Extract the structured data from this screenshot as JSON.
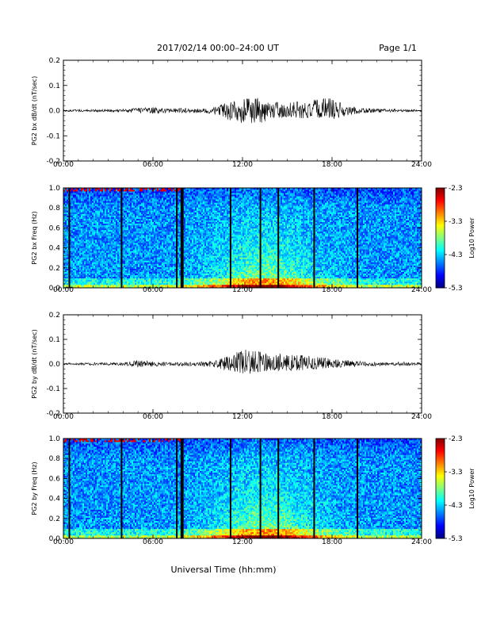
{
  "header": {
    "date_range": "2017/02/14  00:00–24:00 UT",
    "page": "Page 1/1"
  },
  "xlabel": "Universal Time (hh:mm)",
  "chart_data": [
    {
      "type": "line",
      "ylabel": "PG2 bx dB/dt (nT/sec)",
      "xlim": [
        0,
        24
      ],
      "ylim": [
        -0.2,
        0.2
      ],
      "x_ticks": [
        "00:00",
        "06:00",
        "12:00",
        "18:00",
        "24:00"
      ],
      "y_ticks": [
        "0.2",
        "0.1",
        "0.0",
        "-0.1",
        "-0.2"
      ],
      "series": [
        {
          "x": [
            0,
            1,
            2,
            3,
            4,
            5,
            6,
            7,
            8,
            9,
            10,
            11,
            12,
            13,
            14,
            15,
            16,
            17,
            18,
            19,
            20,
            21,
            22,
            23,
            24
          ],
          "ymax": [
            0.004,
            0.004,
            0.005,
            0.005,
            0.006,
            0.01,
            0.014,
            0.008,
            0.01,
            0.008,
            0.012,
            0.03,
            0.045,
            0.05,
            0.035,
            0.03,
            0.038,
            0.045,
            0.055,
            0.02,
            0.01,
            0.008,
            0.006,
            0.005,
            0.004
          ],
          "ymin": [
            -0.004,
            -0.004,
            -0.005,
            -0.005,
            -0.006,
            -0.01,
            -0.012,
            -0.008,
            -0.01,
            -0.008,
            -0.012,
            -0.035,
            -0.05,
            -0.055,
            -0.03,
            -0.025,
            -0.03,
            -0.03,
            -0.035,
            -0.02,
            -0.01,
            -0.008,
            -0.006,
            -0.005,
            -0.004
          ]
        }
      ]
    },
    {
      "type": "heatmap",
      "ylabel": "PG2 bx Freq (Hz)",
      "xlim": [
        0,
        24
      ],
      "ylim": [
        0.0,
        1.0
      ],
      "x_ticks": [
        "00:00",
        "06:00",
        "12:00",
        "18:00",
        "24:00"
      ],
      "y_ticks": [
        "1.0",
        "0.8",
        "0.6",
        "0.4",
        "0.2",
        "0.0"
      ],
      "colorbar": {
        "label": "Log10 Power",
        "range": [
          -5.3,
          -2.3
        ],
        "ticks": [
          "-2.3",
          "-3.3",
          "-4.3",
          "-5.3"
        ]
      },
      "data_gaps_hours": [
        0.4,
        3.9,
        7.6,
        7.9,
        8.0,
        11.2,
        13.2,
        14.4,
        16.8,
        19.7
      ]
    },
    {
      "type": "line",
      "ylabel": "PG2 by dB/dt (nT/sec)",
      "xlim": [
        0,
        24
      ],
      "ylim": [
        -0.2,
        0.2
      ],
      "x_ticks": [
        "00:00",
        "06:00",
        "12:00",
        "18:00",
        "24:00"
      ],
      "y_ticks": [
        "0.2",
        "0.1",
        "0.0",
        "-0.1",
        "-0.2"
      ],
      "series": [
        {
          "x": [
            0,
            1,
            2,
            3,
            4,
            5,
            6,
            7,
            8,
            9,
            10,
            11,
            12,
            13,
            14,
            15,
            16,
            17,
            18,
            19,
            20,
            21,
            22,
            23,
            24
          ],
          "ymax": [
            0.004,
            0.004,
            0.005,
            0.005,
            0.006,
            0.014,
            0.01,
            0.006,
            0.008,
            0.008,
            0.012,
            0.03,
            0.06,
            0.05,
            0.045,
            0.04,
            0.035,
            0.03,
            0.02,
            0.015,
            0.01,
            0.008,
            0.006,
            0.01,
            0.004
          ],
          "ymin": [
            -0.004,
            -0.004,
            -0.005,
            -0.005,
            -0.006,
            -0.014,
            -0.01,
            -0.006,
            -0.008,
            -0.008,
            -0.012,
            -0.03,
            -0.045,
            -0.035,
            -0.03,
            -0.028,
            -0.025,
            -0.02,
            -0.015,
            -0.012,
            -0.01,
            -0.008,
            -0.006,
            -0.008,
            -0.004
          ]
        }
      ]
    },
    {
      "type": "heatmap",
      "ylabel": "PG2 by Freq (Hz)",
      "xlim": [
        0,
        24
      ],
      "ylim": [
        0.0,
        1.0
      ],
      "x_ticks": [
        "00:00",
        "06:00",
        "12:00",
        "18:00",
        "24:00"
      ],
      "y_ticks": [
        "1.0",
        "0.8",
        "0.6",
        "0.4",
        "0.2",
        "0.0"
      ],
      "colorbar": {
        "label": "Log10 Power",
        "range": [
          -5.3,
          -2.3
        ],
        "ticks": [
          "-2.3",
          "-3.3",
          "-4.3",
          "-5.3"
        ]
      },
      "data_gaps_hours": [
        0.4,
        3.9,
        7.6,
        7.9,
        8.0,
        11.2,
        13.2,
        14.4,
        16.8,
        19.7
      ]
    }
  ]
}
